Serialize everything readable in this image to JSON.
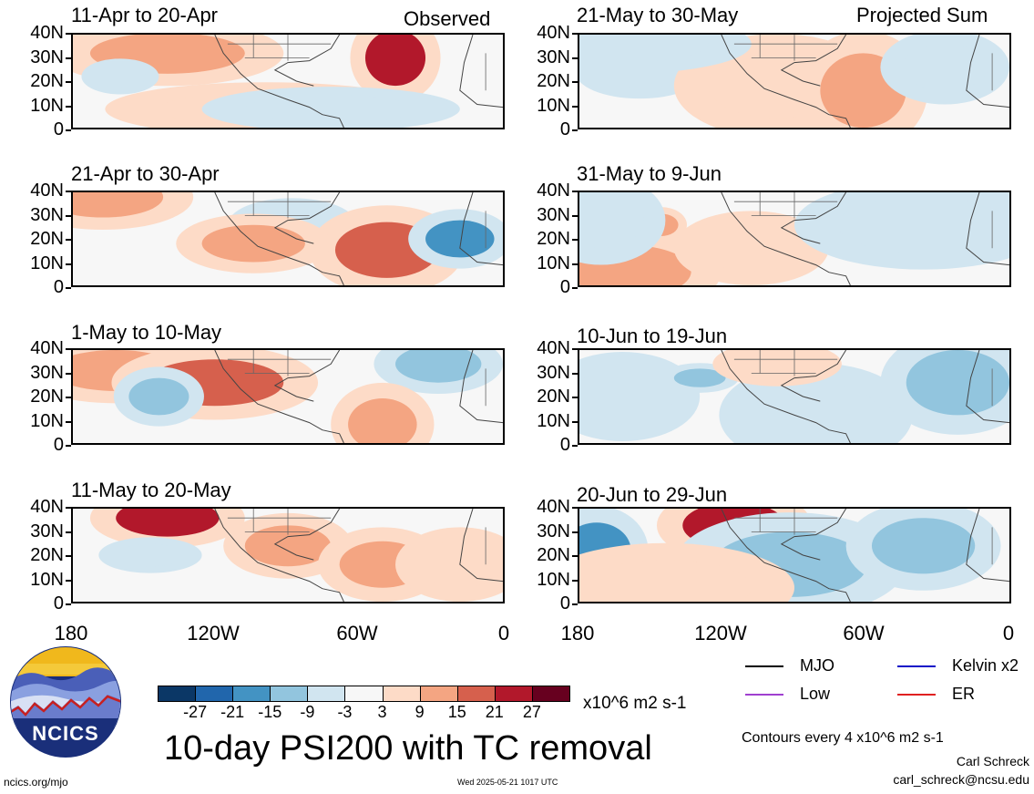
{
  "header": {
    "observed_label": "Observed",
    "projected_label": "Projected Sum"
  },
  "panels": {
    "left": [
      {
        "title": "11-Apr to 20-Apr"
      },
      {
        "title": "21-Apr to 30-Apr"
      },
      {
        "title": "1-May to 10-May"
      },
      {
        "title": "11-May to 20-May"
      }
    ],
    "right": [
      {
        "title": "21-May to 30-May"
      },
      {
        "title": "31-May to 9-Jun"
      },
      {
        "title": "10-Jun to 19-Jun"
      },
      {
        "title": "20-Jun to 29-Jun"
      }
    ]
  },
  "axes": {
    "lat_labels": [
      "40N",
      "30N",
      "20N",
      "10N",
      "0"
    ],
    "lon_labels": [
      "180",
      "120W",
      "60W",
      "0"
    ]
  },
  "legend": {
    "mjo": "MJO",
    "kelvin": "Kelvin x2",
    "low": "Low",
    "er": "ER",
    "colors": {
      "mjo": "#000000",
      "kelvin": "#1010c8",
      "low": "#a040d0",
      "er": "#e02020"
    }
  },
  "colorbar": {
    "labels": [
      "-27",
      "-21",
      "-15",
      "-9",
      "-3",
      "3",
      "9",
      "15",
      "21",
      "27"
    ],
    "colors": [
      "#0b3766",
      "#2166ac",
      "#4393c3",
      "#92c5de",
      "#d1e5f0",
      "#f7f7f7",
      "#fddbc7",
      "#f4a582",
      "#d6604d",
      "#b2182b",
      "#67001f"
    ],
    "units": "x10^6 m2 s-1"
  },
  "footer": {
    "main_title": "10-day PSI200 with TC removal",
    "contours_note": "Contours every 4 x10^6 m2 s-1",
    "author": "Carl Schreck",
    "email": "carl_schreck@ncsu.edu",
    "url": "ncics.org/mjo",
    "timestamp": "Wed 2025-05-21 1017 UTC",
    "logo_text": "NCICS"
  }
}
